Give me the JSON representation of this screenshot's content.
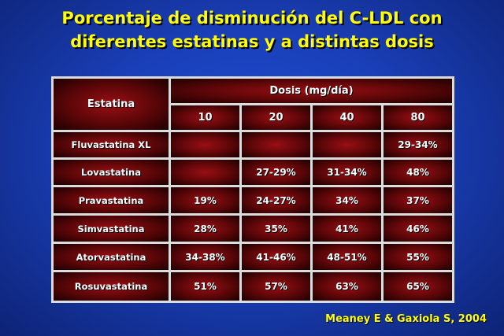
{
  "title": {
    "line1": "Porcentaje de disminución del C-LDL con",
    "line2": "diferentes estatinas y a distintas dosis"
  },
  "table": {
    "statin_header": "Estatina",
    "dose_header": "Dosis (mg/día)",
    "doses": [
      "10",
      "20",
      "40",
      "80"
    ],
    "rows": [
      {
        "name": "Fluvastatina XL",
        "values": [
          "",
          "",
          "",
          "29-34%"
        ]
      },
      {
        "name": "Lovastatina",
        "values": [
          "",
          "27-29%",
          "31-34%",
          "48%"
        ]
      },
      {
        "name": "Pravastatina",
        "values": [
          "19%",
          "24-27%",
          "34%",
          "37%"
        ]
      },
      {
        "name": "Simvastatina",
        "values": [
          "28%",
          "35%",
          "41%",
          "46%"
        ]
      },
      {
        "name": "Atorvastatina",
        "values": [
          "34-38%",
          "41-46%",
          "48-51%",
          "55%"
        ]
      },
      {
        "name": "Rosuvastatina",
        "values": [
          "51%",
          "57%",
          "63%",
          "65%"
        ]
      }
    ]
  },
  "citation": "Meaney E & Gaxiola S, 2004"
}
